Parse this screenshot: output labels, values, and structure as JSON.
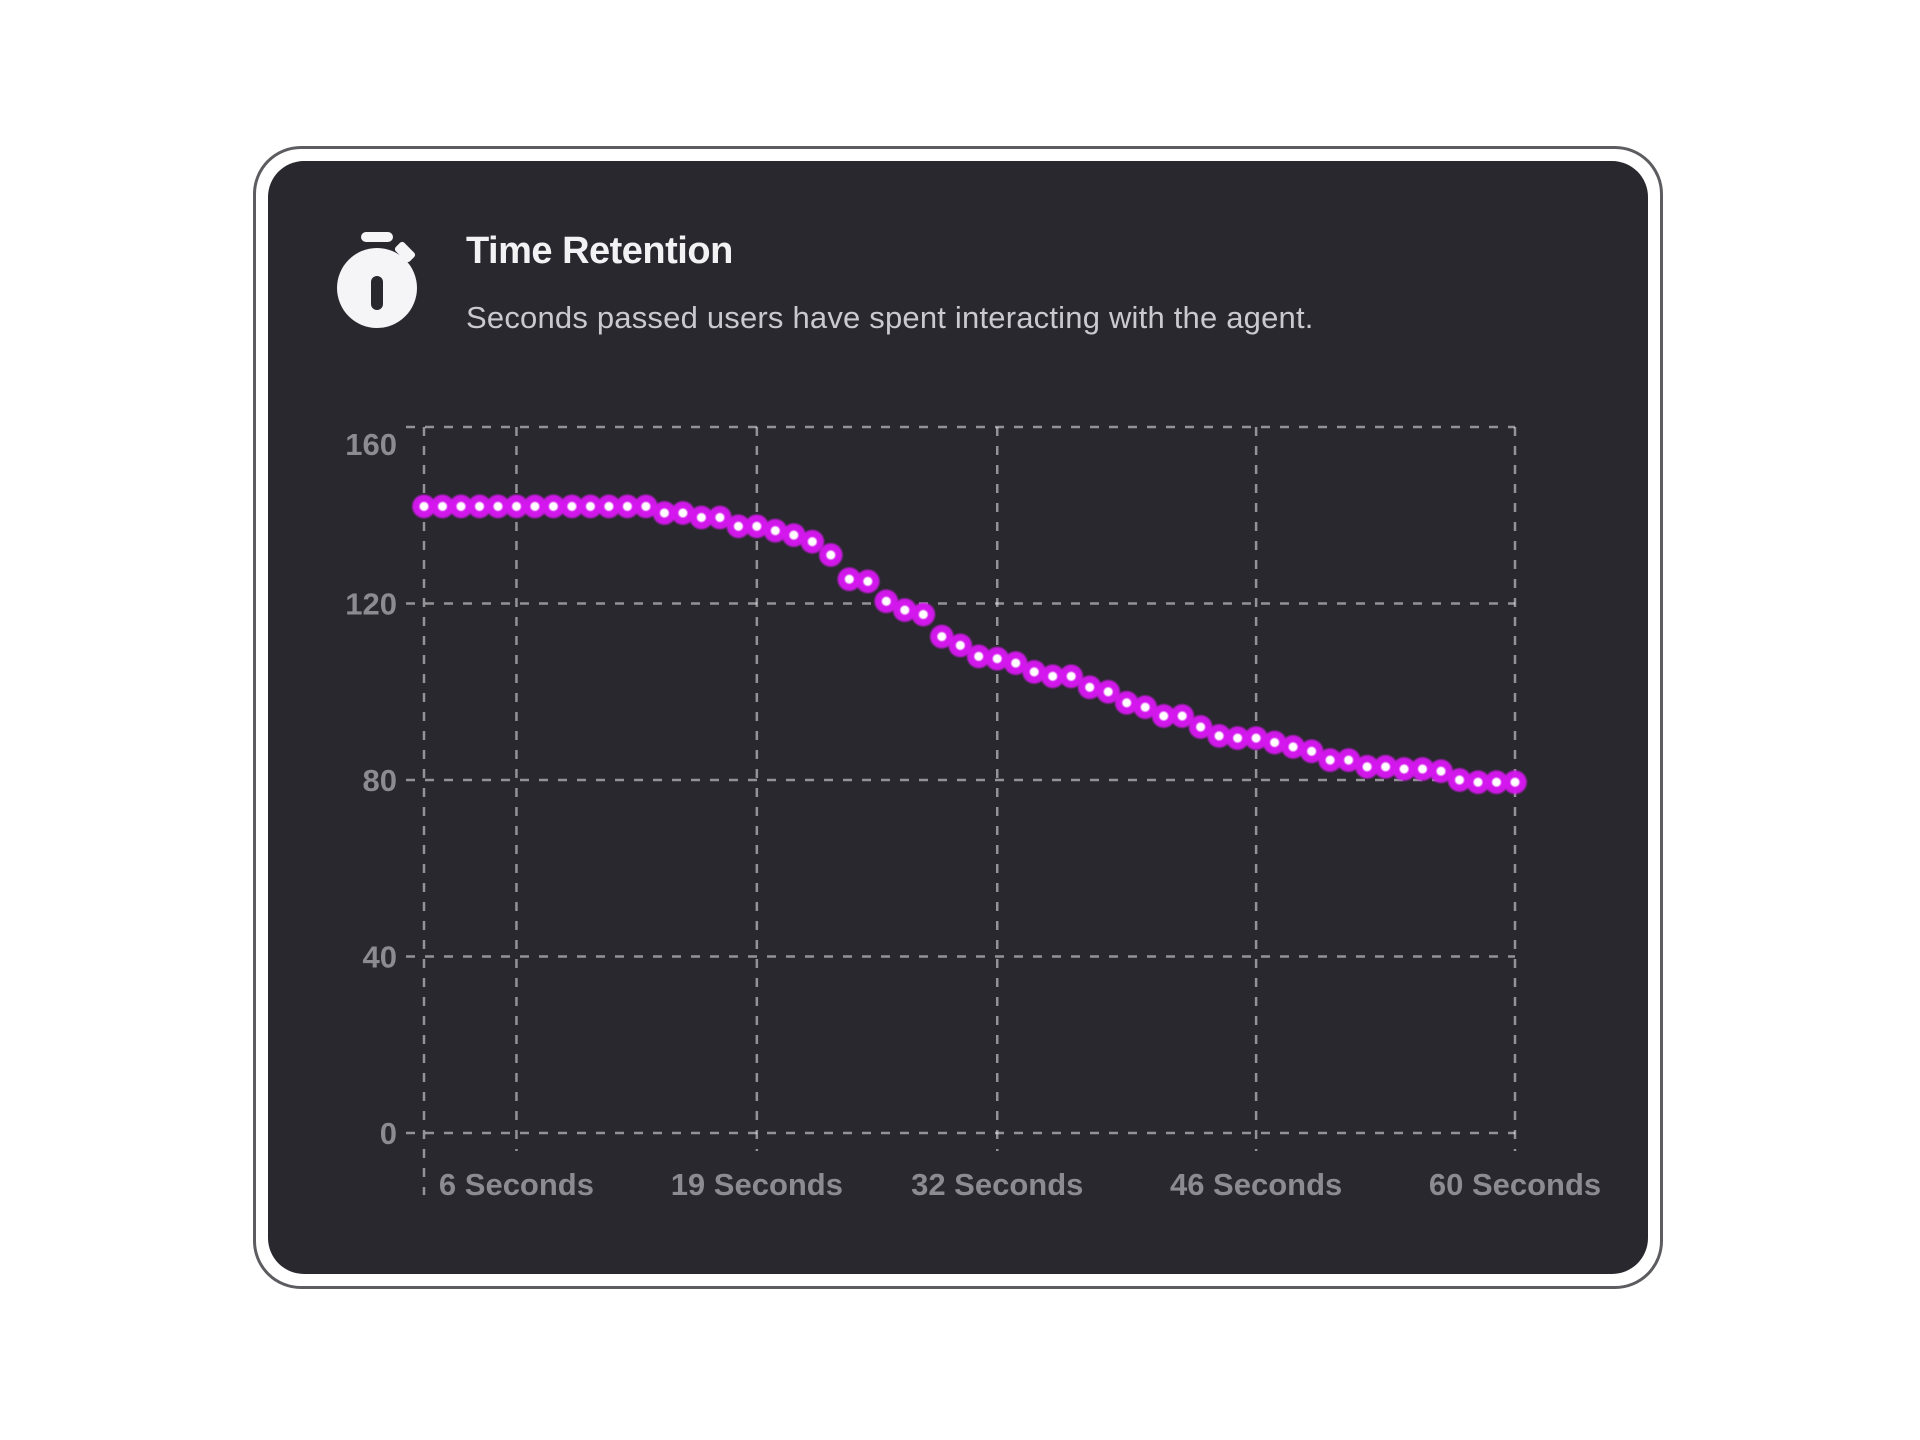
{
  "card": {
    "title": "Time Retention",
    "subtitle": "Seconds passed users have spent interacting with the agent.",
    "icon": "stopwatch-icon"
  },
  "colors": {
    "page_bg": "#ffffff",
    "card_bg": "#29282e",
    "card_border": "#5d5d61",
    "title_text": "#f2f2f5",
    "subtitle_text": "#c9c9cf",
    "axis_label": "#8b8b91",
    "gridline": "#e9e9ee",
    "point": "#d517ef",
    "point_core": "#ffffff",
    "icon": "#f5f5f7"
  },
  "chart_data": {
    "type": "scatter",
    "title": "Time Retention",
    "xlabel": "Seconds",
    "ylabel": "",
    "grid": "dashed",
    "legend": "none",
    "xlim": [
      1,
      60
    ],
    "ylim": [
      0,
      160
    ],
    "yticks": [
      160,
      120,
      80,
      40,
      0
    ],
    "xticks": [
      {
        "x": 6,
        "label": "6 Seconds"
      },
      {
        "x": 19,
        "label": "19 Seconds"
      },
      {
        "x": 32,
        "label": "32 Seconds"
      },
      {
        "x": 46,
        "label": "46 Seconds"
      },
      {
        "x": 60,
        "label": "60 Seconds"
      }
    ],
    "x": [
      1,
      2,
      3,
      4,
      5,
      6,
      7,
      8,
      9,
      10,
      11,
      12,
      13,
      14,
      15,
      16,
      17,
      18,
      19,
      20,
      21,
      22,
      23,
      24,
      25,
      26,
      27,
      28,
      29,
      30,
      31,
      32,
      33,
      34,
      35,
      36,
      37,
      38,
      39,
      40,
      41,
      42,
      43,
      44,
      45,
      46,
      47,
      48,
      49,
      50,
      51,
      52,
      53,
      54,
      55,
      56,
      57,
      58,
      59,
      60
    ],
    "values": [
      142,
      142,
      142,
      142,
      142,
      142,
      142,
      142,
      142,
      142,
      142,
      142,
      142,
      140.5,
      140.5,
      139.5,
      139.5,
      137.5,
      137.5,
      136.5,
      135.5,
      134,
      131,
      125.5,
      125,
      120.5,
      118.5,
      117.5,
      112.5,
      110.5,
      108,
      107.5,
      106.5,
      104.5,
      103.5,
      103.5,
      101,
      100,
      97.5,
      96.5,
      94.5,
      94.5,
      92,
      90,
      89.5,
      89.5,
      88.5,
      87.5,
      86.5,
      84.5,
      84.5,
      83,
      83,
      82.5,
      82.5,
      82,
      80,
      79.5,
      79.5,
      79.5
    ]
  }
}
